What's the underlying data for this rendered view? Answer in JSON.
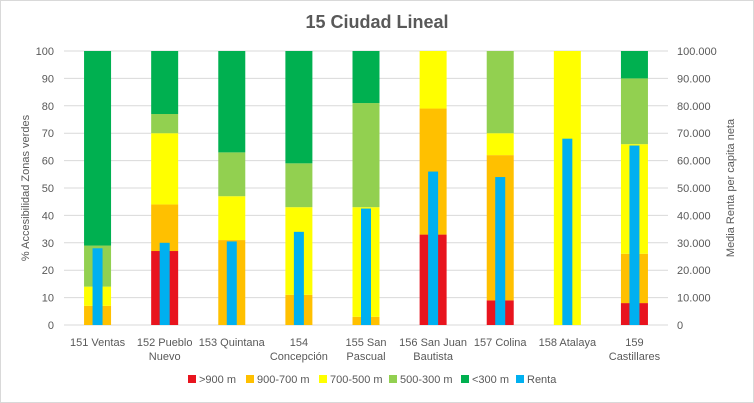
{
  "chart_data": {
    "type": "bar",
    "title": "15 Ciudad Lineal",
    "ylabel": "% Accesibilidad Zonas verdes",
    "y2label": "Media Renta per capita neta",
    "ylim": [
      0,
      100
    ],
    "y2lim": [
      0,
      100000
    ],
    "yticks": [
      "0",
      "10",
      "20",
      "30",
      "40",
      "50",
      "60",
      "70",
      "80",
      "90",
      "100"
    ],
    "y2ticks": [
      "0",
      "10.000",
      "20.000",
      "30.000",
      "40.000",
      "50.000",
      "60.000",
      "70.000",
      "80.000",
      "90.000",
      "100.000"
    ],
    "grid": true,
    "legend_position": "bottom",
    "categories": [
      [
        "151 Ventas"
      ],
      [
        "152 Pueblo",
        "Nuevo"
      ],
      [
        "153 Quintana"
      ],
      [
        "154",
        "Concepción"
      ],
      [
        "155 San",
        "Pascual"
      ],
      [
        "156 San Juan",
        "Bautista"
      ],
      [
        "157 Colina"
      ],
      [
        "158 Atalaya"
      ],
      [
        "159",
        "Castillares"
      ]
    ],
    "stacked_series": [
      {
        "name": ">900 m",
        "color": "#e8141e",
        "values": [
          0,
          27,
          0,
          0,
          0,
          33,
          9,
          0,
          8
        ]
      },
      {
        "name": "900-700 m",
        "color": "#ffc000",
        "values": [
          7,
          17,
          31,
          11,
          3,
          46,
          53,
          0,
          18
        ]
      },
      {
        "name": "700-500 m",
        "color": "#ffff00",
        "values": [
          7,
          26,
          16,
          32,
          40,
          21,
          8,
          100,
          40
        ]
      },
      {
        "name": "500-300 m",
        "color": "#92d050",
        "values": [
          15,
          7,
          16,
          16,
          38,
          0,
          30,
          0,
          24
        ]
      },
      {
        "name": "<300 m",
        "color": "#00b050",
        "values": [
          71,
          23,
          37,
          41,
          19,
          0,
          0,
          0,
          10
        ]
      }
    ],
    "secondary_series": {
      "name": "Renta",
      "color": "#00b0f0",
      "axis": "right",
      "values": [
        28000,
        30000,
        30500,
        34000,
        42500,
        56000,
        54000,
        68000,
        65500
      ]
    }
  }
}
